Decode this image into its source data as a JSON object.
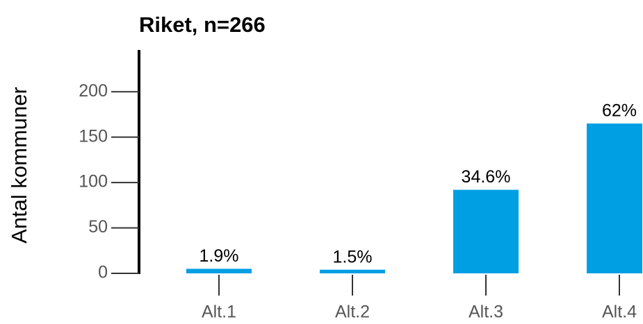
{
  "chart_data": {
    "type": "bar",
    "title": "Riket, n=266",
    "ylabel": "Antal kommuner",
    "categories": [
      "Alt.1",
      "Alt.2",
      "Alt.3",
      "Alt.4"
    ],
    "values": [
      5,
      4,
      92,
      165
    ],
    "value_labels": [
      "1.9%",
      "1.5%",
      "34.6%",
      "62%"
    ],
    "color": "#009fe3",
    "ylim": [
      0,
      246
    ],
    "yticks": [
      0,
      50,
      100,
      150,
      200
    ]
  }
}
